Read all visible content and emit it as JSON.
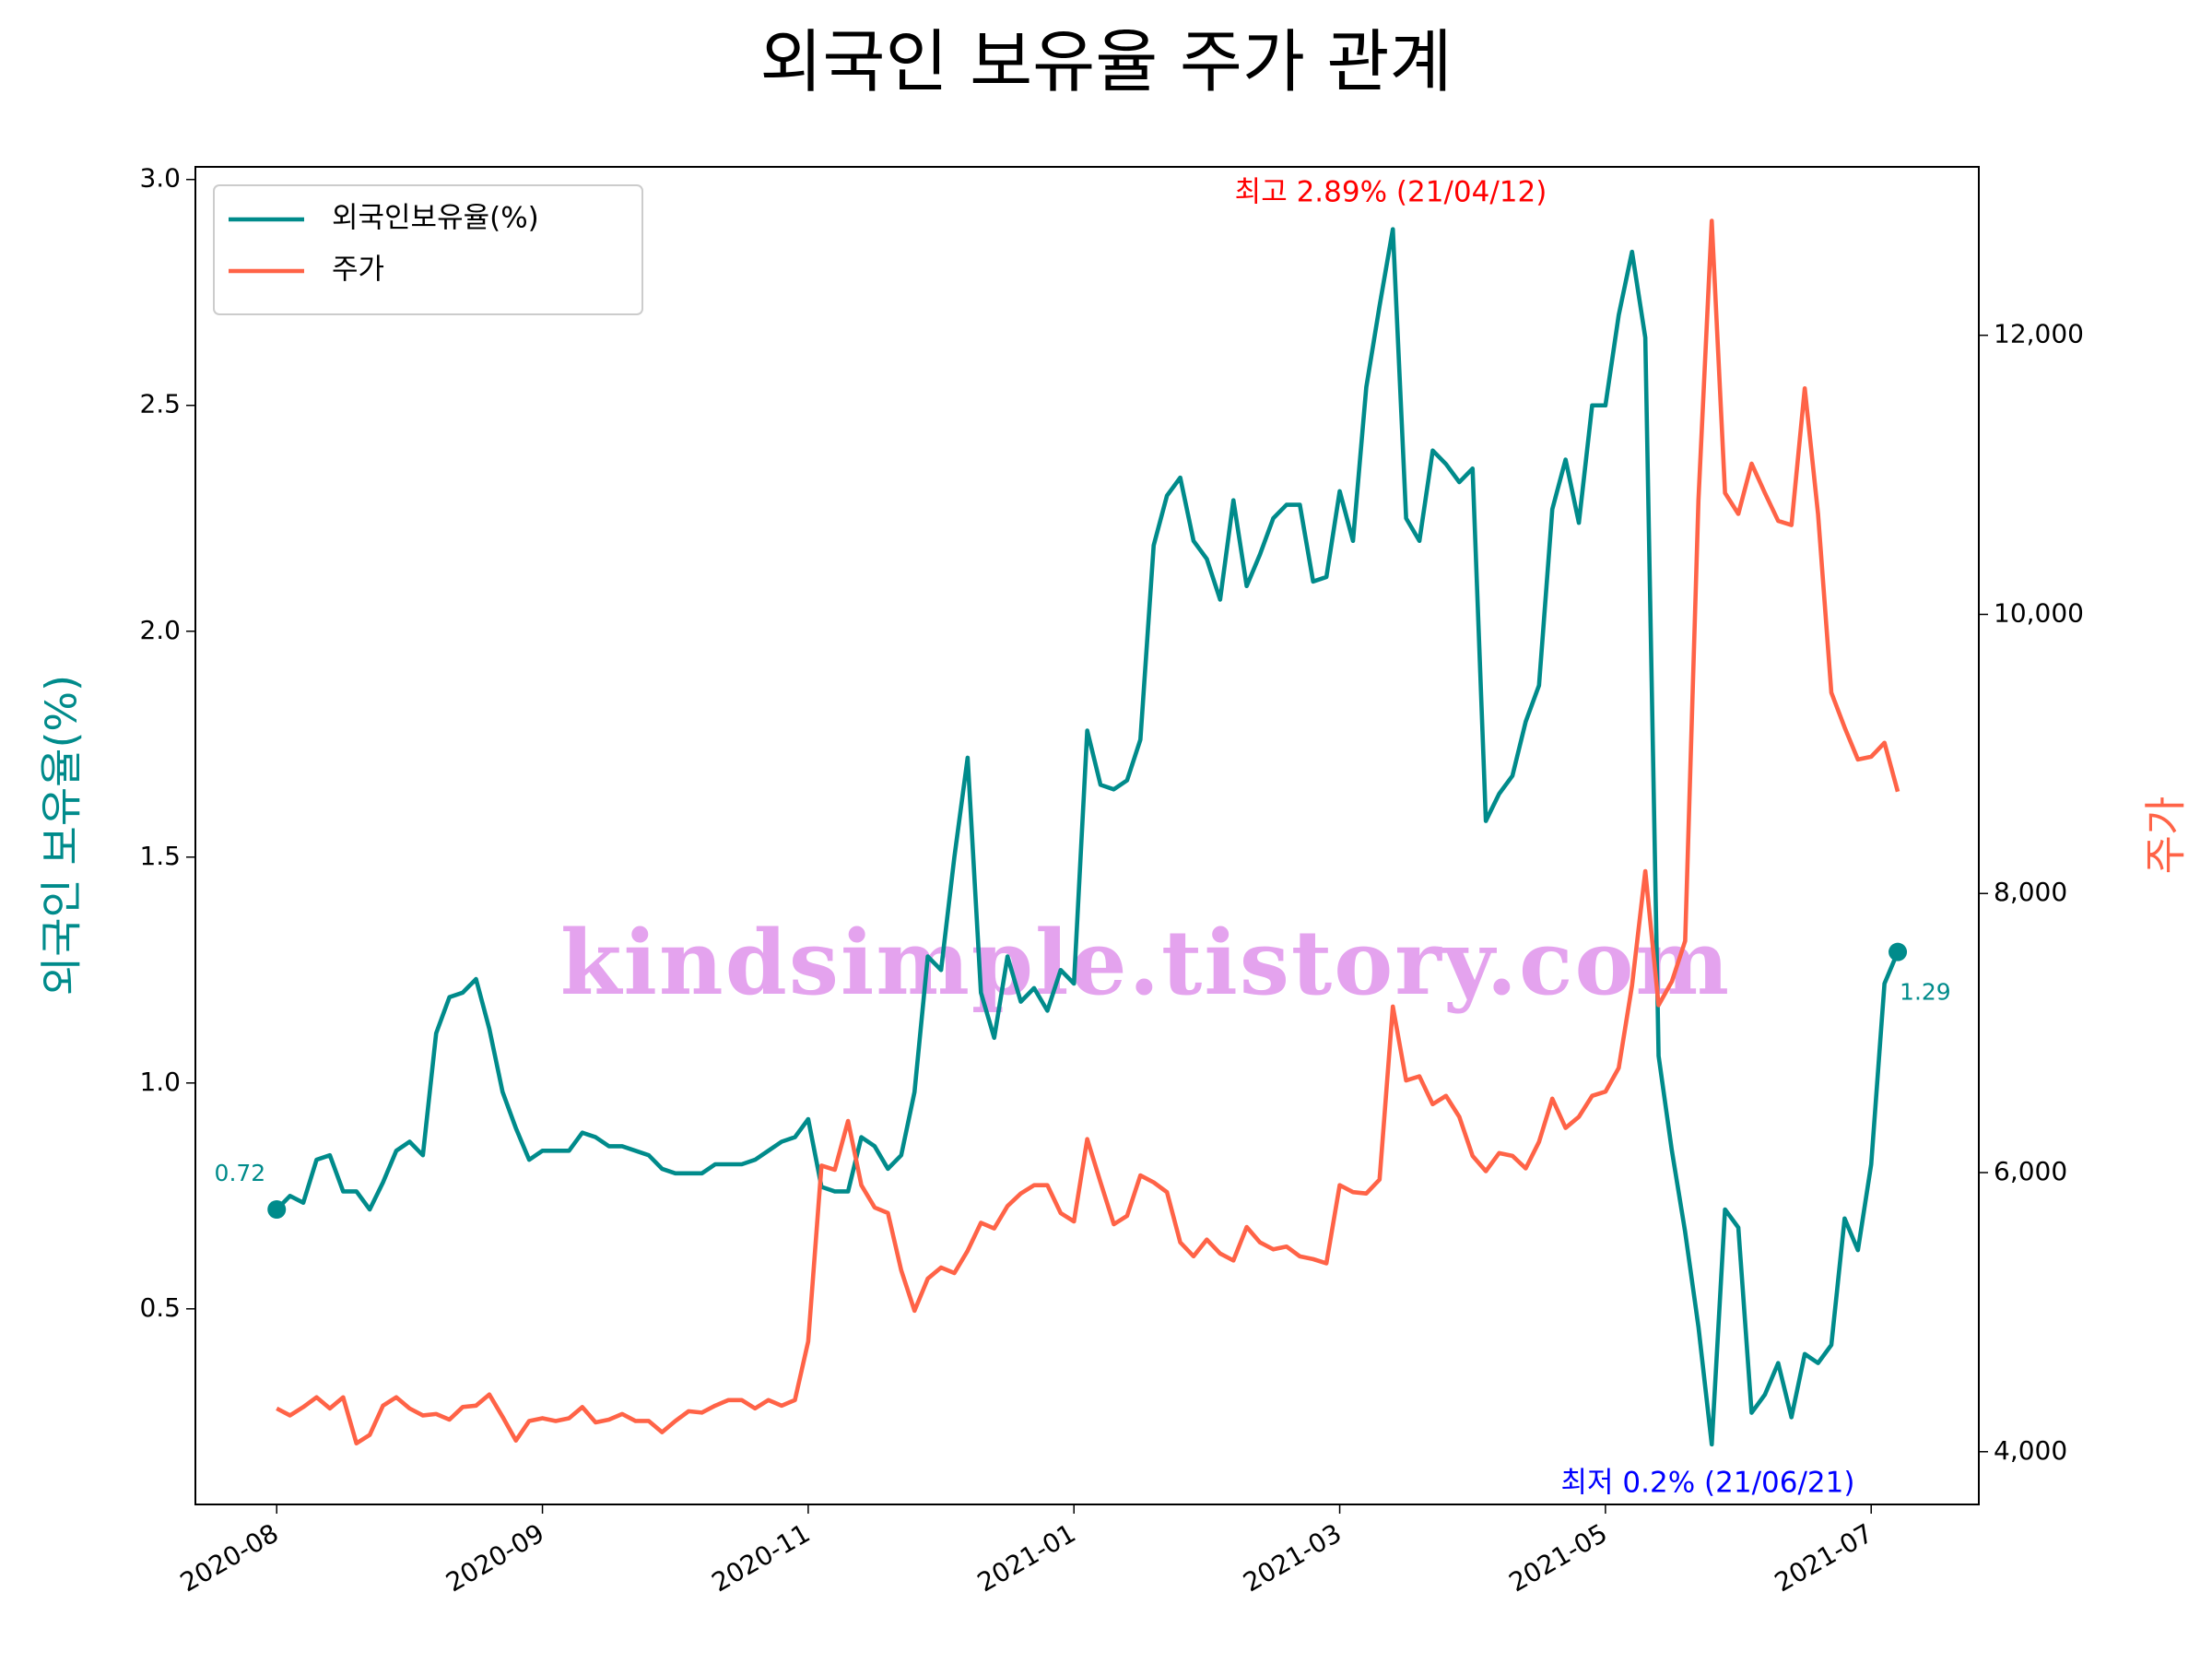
{
  "chart_data": {
    "type": "line",
    "title": "외국인 보유율 주가 관계",
    "ylabel": "외국인 보유율(%)",
    "y2label": "주가",
    "xlim": [
      -6.12,
      128.1
    ],
    "xticks": [
      {
        "value": 0,
        "label": "2020-08"
      },
      {
        "value": 20,
        "label": "2020-09"
      },
      {
        "value": 40,
        "label": "2020-11"
      },
      {
        "value": 60,
        "label": "2021-01"
      },
      {
        "value": 80,
        "label": "2021-03"
      },
      {
        "value": 100,
        "label": "2021-05"
      },
      {
        "value": 120,
        "label": "2021-07"
      }
    ],
    "ylim": [
      0.067,
      3.028
    ],
    "yticks": [
      0.5,
      {
        "value": 1,
        "label": "1.0"
      },
      1.5,
      {
        "value": 2,
        "label": "2.0"
      },
      2.5,
      {
        "value": 3,
        "label": "3.0"
      }
    ],
    "y2lim": [
      3622,
      13207
    ],
    "y2ticks": [
      {
        "value": 4000,
        "label": "4,000"
      },
      {
        "value": 6000,
        "label": "6,000"
      },
      {
        "value": 8000,
        "label": "8,000"
      },
      {
        "value": 10000,
        "label": "10,000"
      },
      {
        "value": 12000,
        "label": "12,000"
      }
    ],
    "legend": "upper left",
    "series": [
      {
        "name": "외국인보유율(%)",
        "color": "#008b8b",
        "values": [
          0.72,
          0.75,
          0.735,
          0.83,
          0.84,
          0.76,
          0.76,
          0.72,
          0.78,
          0.85,
          0.87,
          0.84,
          1.11,
          1.19,
          1.2,
          1.23,
          1.12,
          0.98,
          0.9,
          0.83,
          0.85,
          0.85,
          0.85,
          0.89,
          0.88,
          0.86,
          0.86,
          0.85,
          0.84,
          0.81,
          0.8,
          0.8,
          0.8,
          0.82,
          0.82,
          0.82,
          0.83,
          0.85,
          0.87,
          0.88,
          0.92,
          0.77,
          0.76,
          0.76,
          0.88,
          0.86,
          0.81,
          0.84,
          0.98,
          1.28,
          1.25,
          1.5,
          1.72,
          1.2,
          1.1,
          1.28,
          1.18,
          1.21,
          1.16,
          1.25,
          1.22,
          1.78,
          1.66,
          1.65,
          1.67,
          1.76,
          2.19,
          2.3,
          2.34,
          2.2,
          2.16,
          2.07,
          2.29,
          2.1,
          2.17,
          2.25,
          2.28,
          2.28,
          2.11,
          2.12,
          2.31,
          2.2,
          2.54,
          2.72,
          2.89,
          2.25,
          2.2,
          2.4,
          2.37,
          2.33,
          2.36,
          1.58,
          1.64,
          1.68,
          1.8,
          1.88,
          2.27,
          2.38,
          2.24,
          2.5,
          2.5,
          2.7,
          2.84,
          2.65,
          1.06,
          0.85,
          0.67,
          0.46,
          0.2,
          0.72,
          0.68,
          0.27,
          0.31,
          0.38,
          0.26,
          0.4,
          0.38,
          0.42,
          0.7,
          0.63,
          0.82,
          1.22,
          1.29
        ]
      },
      {
        "name": "주가",
        "color": "#ff6347",
        "axis": "y2",
        "values": [
          4310,
          4260,
          4320,
          4390,
          4310,
          4390,
          4060,
          4120,
          4330,
          4390,
          4310,
          4260,
          4270,
          4230,
          4320,
          4330,
          4410,
          4250,
          4080,
          4220,
          4240,
          4220,
          4240,
          4320,
          4210,
          4230,
          4270,
          4220,
          4220,
          4140,
          4220,
          4290,
          4280,
          4330,
          4370,
          4370,
          4310,
          4370,
          4330,
          4370,
          4790,
          6050,
          6020,
          6370,
          5910,
          5750,
          5710,
          5300,
          5010,
          5240,
          5320,
          5280,
          5440,
          5640,
          5600,
          5760,
          5850,
          5910,
          5910,
          5710,
          5650,
          6240,
          5930,
          5630,
          5690,
          5980,
          5930,
          5860,
          5500,
          5400,
          5520,
          5420,
          5370,
          5610,
          5500,
          5450,
          5470,
          5400,
          5380,
          5350,
          5910,
          5860,
          5850,
          5950,
          7190,
          6660,
          6690,
          6490,
          6550,
          6400,
          6120,
          6010,
          6140,
          6120,
          6030,
          6220,
          6530,
          6320,
          6400,
          6550,
          6580,
          6750,
          7340,
          8160,
          7200,
          7370,
          7660,
          10820,
          12820,
          10870,
          10720,
          11080,
          10870,
          10670,
          10640,
          11620,
          10720,
          9440,
          9190,
          8960,
          8980,
          9080,
          8730
        ]
      }
    ],
    "annotations": [
      {
        "text": "최고 2.89% (21/04/12)",
        "color": "#ff0000"
      },
      {
        "text": "최저 0.2% (21/06/21)",
        "color": "#0000ff"
      }
    ],
    "watermark": "kindsimple.tistory.com"
  }
}
